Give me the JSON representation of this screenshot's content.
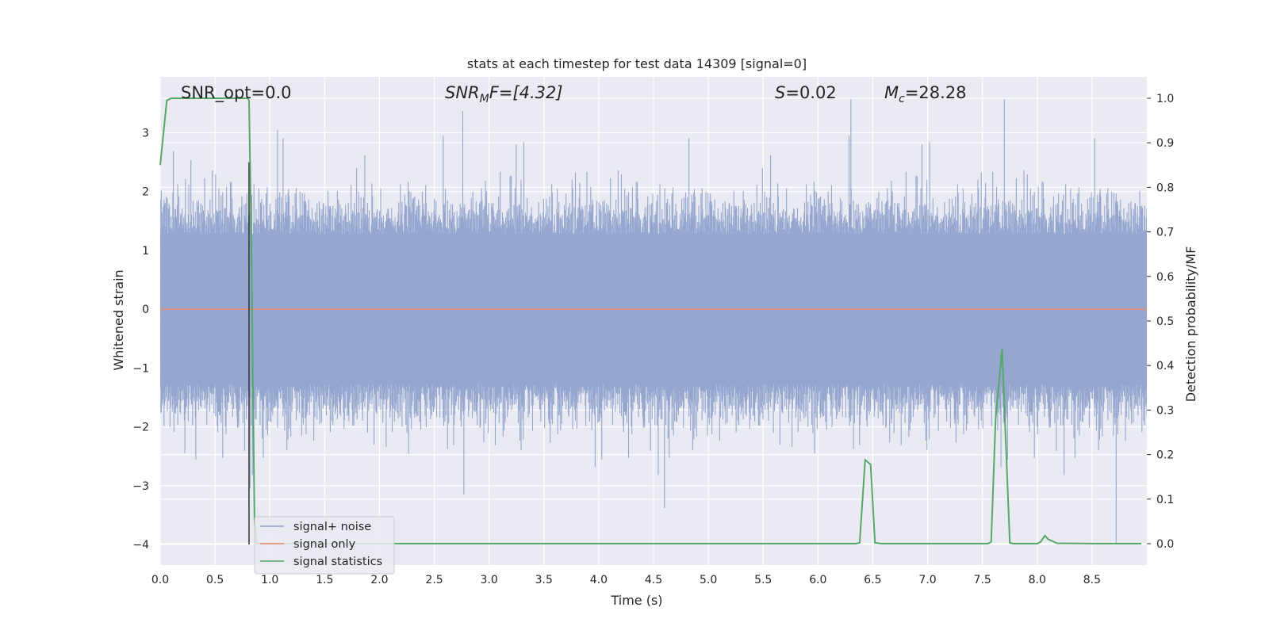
{
  "chart_data": {
    "type": "line",
    "title": "stats at each timestep for test data 14309 [signal=0]",
    "xlabel": "Time (s)",
    "ylabel": "Whitened strain",
    "y2label": "Detection probability/MF",
    "xlim": [
      0.0,
      9.0
    ],
    "ylim": [
      -4.35,
      3.95
    ],
    "y2lim": [
      -0.048,
      1.048
    ],
    "grid": true,
    "x_ticks": [
      "0.0",
      "0.5",
      "1.0",
      "1.5",
      "2.0",
      "2.5",
      "3.0",
      "3.5",
      "4.0",
      "4.5",
      "5.0",
      "5.5",
      "6.0",
      "6.5",
      "7.0",
      "7.5",
      "8.0",
      "8.5"
    ],
    "y_ticks": [
      "3",
      "2",
      "1",
      "0",
      "−1",
      "−2",
      "−3",
      "−4"
    ],
    "y_tick_values": [
      3,
      2,
      1,
      0,
      -1,
      -2,
      -3,
      -4
    ],
    "y2_ticks": [
      "1.0",
      "0.9",
      "0.8",
      "0.7",
      "0.6",
      "0.5",
      "0.4",
      "0.3",
      "0.2",
      "0.1",
      "0.0"
    ],
    "y2_tick_values": [
      1.0,
      0.9,
      0.8,
      0.7,
      0.6,
      0.5,
      0.4,
      0.3,
      0.2,
      0.1,
      0.0
    ],
    "legend_position": "lower-left",
    "annotations": {
      "snr_opt": "SNR_opt=0.0",
      "snr_mf_base": "SNR",
      "snr_mf_sub": "M",
      "snr_mf_rest": "F=[4.32]",
      "s_sym": "S",
      "s_rest": "=0.02",
      "mc_sym": "M",
      "mc_sub": "c",
      "mc_rest": "=28.28"
    },
    "series": [
      {
        "name": "signal+ noise",
        "color": "#8da0cb",
        "kind": "noise",
        "envelope_typical": [
          -1.7,
          1.7
        ],
        "peaks": [
          {
            "x": 0.82,
            "y": -3.05
          },
          {
            "x": 1.07,
            "y": 3.05
          },
          {
            "x": 2.76,
            "y": 3.37
          },
          {
            "x": 2.77,
            "y": -3.15
          },
          {
            "x": 4.6,
            "y": -3.38
          },
          {
            "x": 6.3,
            "y": 3.57
          },
          {
            "x": 7.7,
            "y": 3.57
          },
          {
            "x": 8.72,
            "y": -4.0
          }
        ]
      },
      {
        "name": "signal only",
        "color": "#e78c6a",
        "kind": "line",
        "x": [
          0.0,
          9.0
        ],
        "y": [
          0.0,
          0.0
        ]
      },
      {
        "name": "signal statistics",
        "color": "#55a868",
        "kind": "line",
        "axis": "right",
        "x": [
          0.0,
          0.06,
          0.1,
          0.2,
          0.5,
          0.76,
          0.8,
          0.81,
          0.83,
          0.86,
          0.88,
          0.9,
          1.5,
          3.0,
          5.0,
          6.35,
          6.38,
          6.43,
          6.48,
          6.52,
          6.58,
          7.0,
          7.55,
          7.58,
          7.62,
          7.68,
          7.75,
          7.78,
          8.0,
          8.03,
          8.07,
          8.1,
          8.18,
          8.5,
          8.7,
          8.95
        ],
        "y": [
          0.85,
          0.995,
          1.0,
          1.0,
          1.0,
          1.0,
          1.0,
          0.995,
          0.7,
          0.05,
          0.0,
          0.0,
          0.0,
          0.0,
          0.0,
          0.0,
          0.002,
          0.188,
          0.178,
          0.002,
          0.0,
          0.0,
          0.0,
          0.004,
          0.28,
          0.437,
          0.002,
          0.0,
          0.0,
          0.004,
          0.018,
          0.01,
          0.001,
          0.0,
          0.0,
          0.0
        ]
      }
    ],
    "vertical_marker": {
      "x": 0.81,
      "y_top": 2.5,
      "y_bottom": -4.0,
      "color": "#333333"
    }
  }
}
